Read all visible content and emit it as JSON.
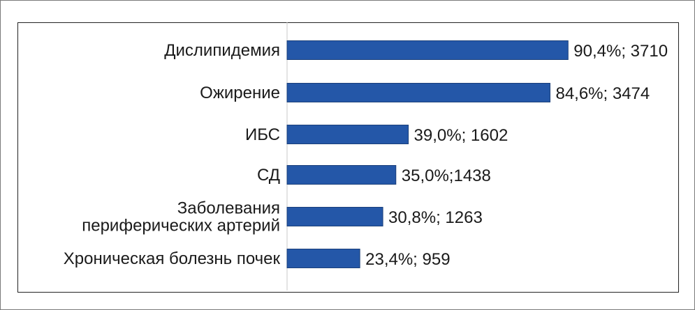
{
  "colors": {
    "bar_fill": "#2457a8",
    "bar_stroke": "#1a3f7a",
    "axis": "#c8c8c8"
  },
  "chart_data": {
    "type": "bar",
    "orientation": "horizontal",
    "categories": [
      [
        "Дислипидемия"
      ],
      [
        "Ожирение"
      ],
      [
        "ИБС"
      ],
      [
        "СД"
      ],
      [
        "Заболевания",
        "периферических артерий"
      ],
      [
        "Хроническая болезнь почек"
      ]
    ],
    "values": [
      90.4,
      84.6,
      39.0,
      35.0,
      30.8,
      23.4
    ],
    "data_labels": [
      "90,4%; 3710",
      "84,6%; 3474",
      "39,0%; 1602",
      "35,0%;1438",
      "30,8%; 1263",
      "23,4%; 959"
    ],
    "xlim": [
      0,
      100
    ],
    "grid": false,
    "legend": "none"
  }
}
